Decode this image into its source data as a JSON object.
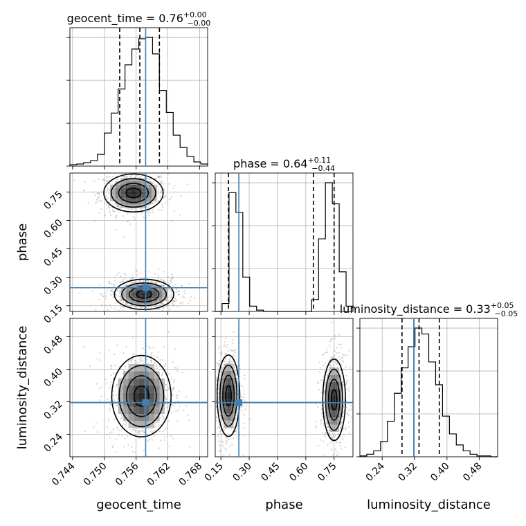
{
  "chart_data": {
    "type": "corner",
    "parameters": [
      {
        "name": "geocent_time",
        "label": "geocent_time",
        "title_prefix": "geocent_time = ",
        "median": "0.76",
        "plus": "+0.00",
        "minus": "−0.00",
        "range": [
          0.7435,
          0.7695
        ],
        "ticks": [
          0.744,
          0.75,
          0.756,
          0.762,
          0.768
        ],
        "tick_labels": [
          "0.744",
          "0.750",
          "0.756",
          "0.762",
          "0.768"
        ],
        "quantiles": [
          0.7529,
          0.7567,
          0.7604
        ],
        "truth": 0.7578,
        "hist": {
          "edges": [
            0.7435,
            0.7448,
            0.7461,
            0.7474,
            0.7487,
            0.75,
            0.7513,
            0.7526,
            0.7539,
            0.7552,
            0.7565,
            0.7578,
            0.7591,
            0.7604,
            0.7617,
            0.763,
            0.7643,
            0.7656,
            0.7669,
            0.7682,
            0.7695
          ],
          "counts": [
            2,
            3,
            5,
            8,
            17,
            48,
            77,
            112,
            147,
            170,
            185,
            187,
            163,
            110,
            78,
            45,
            27,
            14,
            6,
            3
          ]
        }
      },
      {
        "name": "phase",
        "label": "phase",
        "title_prefix": "phase = ",
        "median": "0.64",
        "plus": "+0.11",
        "minus": "−0.44",
        "range": [
          0.12,
          0.85
        ],
        "ticks": [
          0.15,
          0.3,
          0.45,
          0.6,
          0.75
        ],
        "tick_labels": [
          "0.15",
          "0.30",
          "0.45",
          "0.60",
          "0.75"
        ],
        "quantiles": [
          0.19,
          0.64,
          0.75
        ],
        "truth": 0.245,
        "hist": {
          "edges": [
            0.12,
            0.1565,
            0.193,
            0.2295,
            0.266,
            0.3025,
            0.339,
            0.3755,
            0.412,
            0.4485,
            0.485,
            0.5215,
            0.558,
            0.5945,
            0.631,
            0.6675,
            0.704,
            0.7405,
            0.777,
            0.8135,
            0.85
          ],
          "counts": [
            0,
            12,
            180,
            150,
            52,
            8,
            2,
            0,
            0,
            0,
            0,
            0,
            0,
            0,
            18,
            110,
            195,
            163,
            60,
            8
          ]
        }
      },
      {
        "name": "luminosity_distance",
        "label": "luminosity_distance",
        "title_prefix": "luminosity_distance = ",
        "median": "0.33",
        "plus": "+0.05",
        "minus": "−0.05",
        "range": [
          0.185,
          0.525
        ],
        "ticks": [
          0.24,
          0.32,
          0.4,
          0.48
        ],
        "tick_labels": [
          "0.24",
          "0.32",
          "0.40",
          "0.48"
        ],
        "quantiles": [
          0.289,
          0.331,
          0.381
        ],
        "truth": 0.318,
        "hist": {
          "edges": [
            0.185,
            0.202,
            0.219,
            0.236,
            0.253,
            0.27,
            0.287,
            0.304,
            0.321,
            0.338,
            0.355,
            0.372,
            0.389,
            0.406,
            0.423,
            0.44,
            0.457,
            0.474,
            0.491,
            0.508,
            0.525
          ],
          "counts": [
            1,
            3,
            7,
            18,
            42,
            75,
            105,
            130,
            152,
            145,
            112,
            85,
            48,
            27,
            14,
            7,
            3,
            1,
            1,
            0
          ]
        }
      }
    ],
    "joint_modes": [
      {
        "x": "geocent_time",
        "y": "phase",
        "centers": [
          [
            0.7555,
            0.745
          ],
          [
            0.7575,
            0.21
          ]
        ],
        "sd": [
          [
            0.0028,
            0.05
          ],
          [
            0.0028,
            0.04
          ]
        ]
      },
      {
        "x": "geocent_time",
        "y": "luminosity_distance",
        "centers": [
          [
            0.757,
            0.334
          ]
        ],
        "sd": [
          [
            0.0028,
            0.05
          ]
        ]
      },
      {
        "x": "phase",
        "y": "luminosity_distance",
        "centers": [
          [
            0.19,
            0.335
          ],
          [
            0.75,
            0.325
          ]
        ],
        "sd": [
          [
            0.03,
            0.05
          ],
          [
            0.03,
            0.05
          ]
        ]
      }
    ],
    "grid": true,
    "truth_color": "#3f7fb6",
    "quantiles_shown": [
      0.16,
      0.5,
      0.84
    ]
  }
}
